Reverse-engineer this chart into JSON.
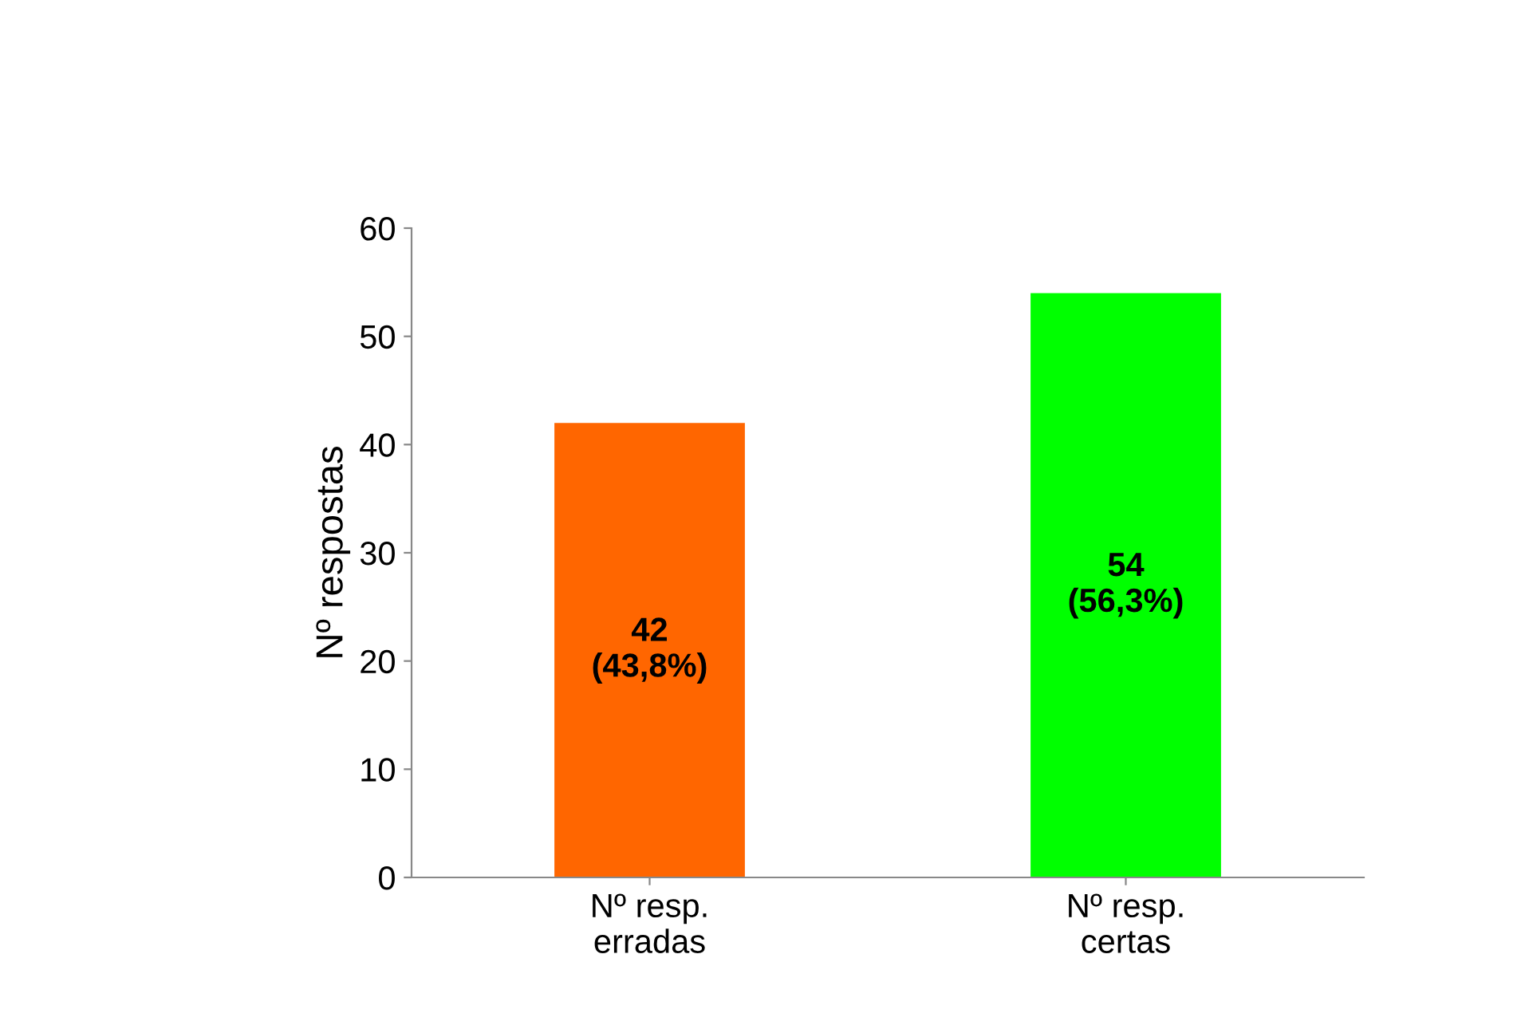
{
  "chart_data": {
    "type": "bar",
    "ylabel": "Nº respostas",
    "categories": [
      "Nº resp.\nerradas",
      "Nº resp.\ncertas"
    ],
    "values": [
      42,
      54
    ],
    "colors": [
      "#ff6600",
      "#00ff00"
    ],
    "value_labels": [
      "42\n(43,8%)",
      "54\n(56,3%)"
    ],
    "ylim": [
      0,
      60
    ],
    "yticks": [
      0,
      10,
      20,
      30,
      40,
      50,
      60
    ],
    "grid": false
  }
}
